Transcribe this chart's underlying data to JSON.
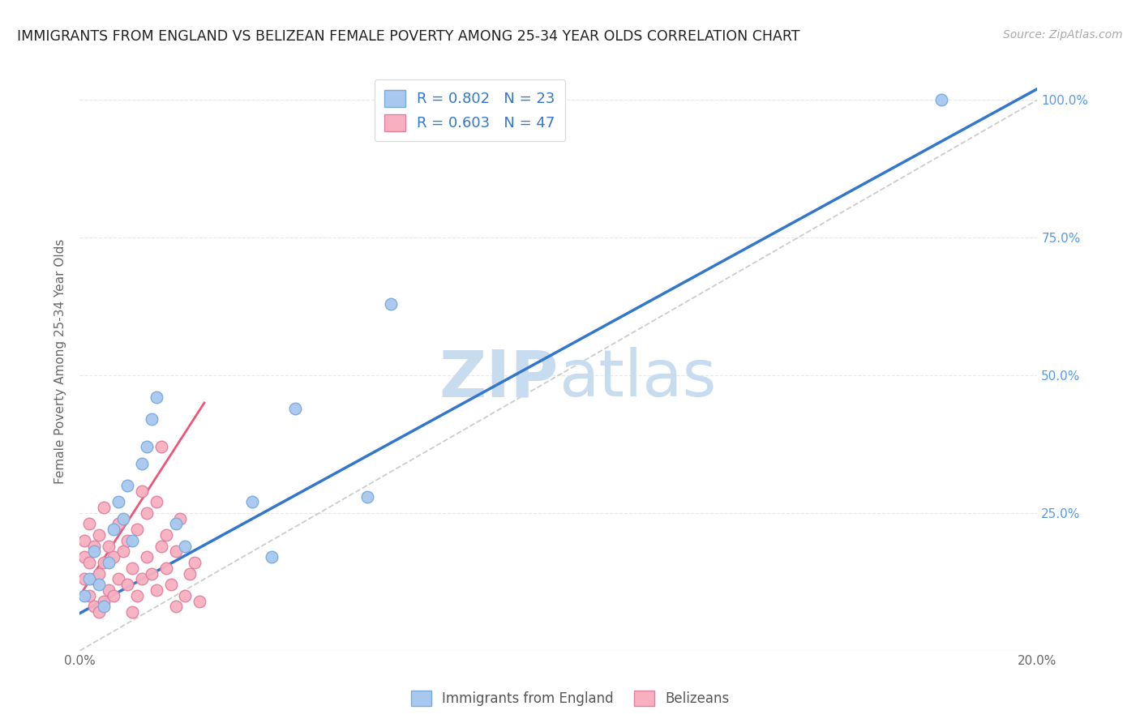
{
  "title": "IMMIGRANTS FROM ENGLAND VS BELIZEAN FEMALE POVERTY AMONG 25-34 YEAR OLDS CORRELATION CHART",
  "source": "Source: ZipAtlas.com",
  "ylabel": "Female Poverty Among 25-34 Year Olds",
  "xlim": [
    0.0,
    0.2
  ],
  "ylim": [
    0.0,
    1.05
  ],
  "ytick_labels": [
    "",
    "25.0%",
    "50.0%",
    "75.0%",
    "100.0%"
  ],
  "ytick_values": [
    0.0,
    0.25,
    0.5,
    0.75,
    1.0
  ],
  "xtick_labels": [
    "0.0%",
    "",
    "",
    "",
    "",
    "20.0%"
  ],
  "xtick_values": [
    0.0,
    0.04,
    0.08,
    0.12,
    0.16,
    0.2
  ],
  "england_R": 0.802,
  "england_N": 23,
  "belizean_R": 0.603,
  "belizean_N": 47,
  "england_color": "#a8c8f0",
  "england_edge_color": "#7aaada",
  "belizean_color": "#f8b0c0",
  "belizean_edge_color": "#e080a0",
  "england_line_color": "#3377cc",
  "belizean_line_color": "#ee5577",
  "diagonal_color": "#cccccc",
  "watermark_color": "#ddeeff",
  "england_x": [
    0.001,
    0.002,
    0.003,
    0.004,
    0.005,
    0.006,
    0.007,
    0.008,
    0.009,
    0.01,
    0.011,
    0.013,
    0.014,
    0.015,
    0.016,
    0.02,
    0.022,
    0.036,
    0.04,
    0.045,
    0.06,
    0.065,
    0.18
  ],
  "england_y": [
    0.1,
    0.13,
    0.18,
    0.12,
    0.08,
    0.16,
    0.22,
    0.27,
    0.24,
    0.3,
    0.2,
    0.34,
    0.37,
    0.42,
    0.46,
    0.23,
    0.19,
    0.27,
    0.17,
    0.44,
    0.28,
    0.63,
    1.0
  ],
  "belizean_x": [
    0.001,
    0.001,
    0.001,
    0.002,
    0.002,
    0.002,
    0.003,
    0.003,
    0.003,
    0.004,
    0.004,
    0.004,
    0.005,
    0.005,
    0.005,
    0.006,
    0.006,
    0.007,
    0.007,
    0.008,
    0.008,
    0.009,
    0.01,
    0.01,
    0.011,
    0.011,
    0.012,
    0.012,
    0.013,
    0.013,
    0.014,
    0.014,
    0.015,
    0.016,
    0.016,
    0.017,
    0.017,
    0.018,
    0.018,
    0.019,
    0.02,
    0.02,
    0.021,
    0.022,
    0.023,
    0.024,
    0.025
  ],
  "belizean_y": [
    0.13,
    0.17,
    0.2,
    0.1,
    0.16,
    0.23,
    0.08,
    0.13,
    0.19,
    0.07,
    0.14,
    0.21,
    0.09,
    0.16,
    0.26,
    0.11,
    0.19,
    0.1,
    0.17,
    0.13,
    0.23,
    0.18,
    0.12,
    0.2,
    0.07,
    0.15,
    0.1,
    0.22,
    0.13,
    0.29,
    0.17,
    0.25,
    0.14,
    0.11,
    0.27,
    0.19,
    0.37,
    0.21,
    0.15,
    0.12,
    0.08,
    0.18,
    0.24,
    0.1,
    0.14,
    0.16,
    0.09
  ],
  "legend_blue_label": "Immigrants from England",
  "legend_pink_label": "Belizeans",
  "background_color": "#ffffff",
  "grid_color": "#e8e8e8",
  "england_line_x0": 0.0,
  "england_line_y0": 0.068,
  "england_line_x1": 0.2,
  "england_line_y1": 1.02,
  "belizean_line_x0": 0.0,
  "belizean_line_y0": 0.1,
  "belizean_line_x1": 0.026,
  "belizean_line_y1": 0.45
}
